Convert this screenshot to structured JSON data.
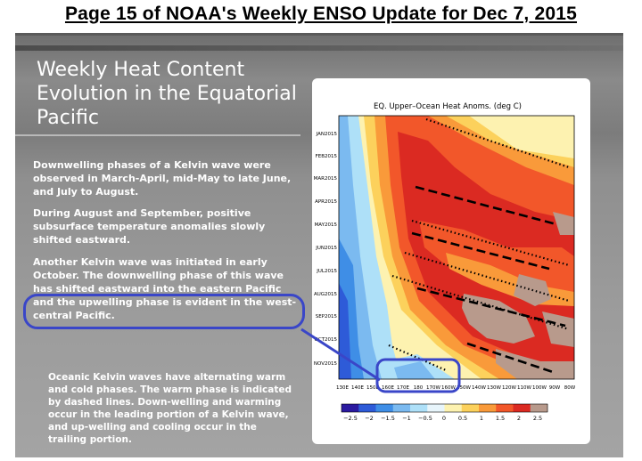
{
  "page_title": "Page 15 of NOAA's Weekly ENSO Update for Dec 7, 2015",
  "slide": {
    "title_lines": [
      "Weekly Heat Content",
      "Evolution in the Equatorial",
      "Pacific"
    ],
    "paragraphs": [
      "Downwelling  phases of a Kelvin wave were observed in March-April, mid-May to late June, and July to August.",
      "During August and September, positive subsurface temperature anomalies slowly shifted eastward.",
      "Another Kelvin wave was initiated in early October. The downwelling phase of this wave has shifted eastward into the eastern Pacific and the upwelling phase is evident in the west-central Pacific."
    ],
    "note": "Oceanic Kelvin waves have alternating warm and cold phases. The warm phase is indicated by dashed lines. Down-welling and warming occur in the leading portion of a Kelvin wave, and up-welling and cooling occur in the trailing portion."
  },
  "chart_data": {
    "type": "heatmap",
    "title": "EQ. Upper–Ocean Heat Anoms. (deg C)",
    "x_tick_labels": [
      "130E",
      "140E",
      "150E",
      "160E",
      "170E",
      "180",
      "170W",
      "160W",
      "150W",
      "140W",
      "130W",
      "120W",
      "110W",
      "100W",
      "90W",
      "80W"
    ],
    "y_tick_labels": [
      "JAN2015",
      "FEB2015",
      "MAR2015",
      "APR2015",
      "MAY2015",
      "JUN2015",
      "JUL2015",
      "AUG2015",
      "SEP2015",
      "OCT2015",
      "NOV2015"
    ],
    "colorbar_ticks": [
      "−2.5",
      "−2",
      "−1.5",
      "−1",
      "−0.5",
      "0",
      "0.5",
      "1",
      "1.5",
      "2",
      "2.5"
    ],
    "colorbar_colors": [
      "#2b1aa0",
      "#2e5bd8",
      "#3f8ee6",
      "#7bbaf0",
      "#aee0f8",
      "#e8f5fb",
      "#fdf2b0",
      "#fcd15c",
      "#f99a3a",
      "#f2572a",
      "#db2a22",
      "#b89a8c"
    ]
  }
}
